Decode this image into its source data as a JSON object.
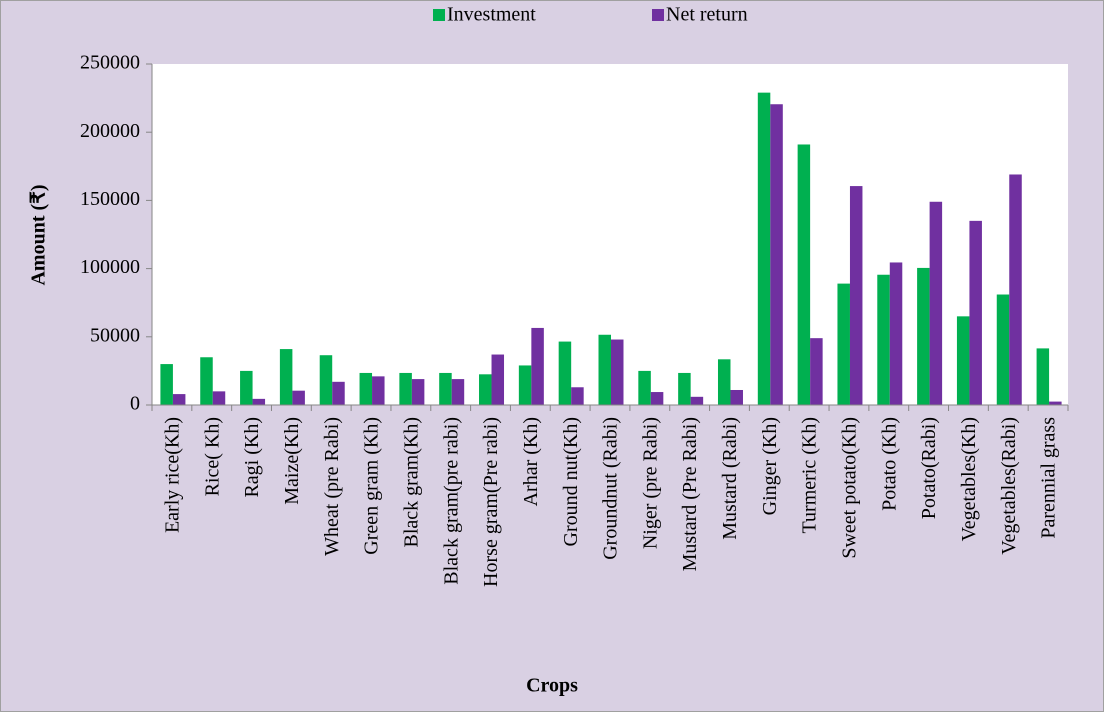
{
  "chart_data": {
    "type": "bar",
    "y_label": "Amount (₹)",
    "x_label": "Crops",
    "categories": [
      "Early rice(Kh)",
      "Rice( Kh)",
      "Ragi (Kh)",
      "Maize(Kh)",
      "Wheat (pre Rabi)",
      "Green gram (Kh)",
      "Black gram(Kh)",
      "Black gram(pre rabi)",
      "Horse gram(Pre rabi)",
      "Arhar (Kh)",
      "Ground nut(Kh)",
      "Groundnut (Rabi)",
      "Niger (pre Rabi)",
      "Mustard (Pre Rabi)",
      "Mustard (Rabi)",
      "Ginger (Kh)",
      "Turmeric (Kh)",
      "Sweet potato(Kh)",
      "Potato (Kh)",
      "Potato(Rabi)",
      "Vegetables(Kh)",
      "Vegetables(Rabi)",
      "Parennial grass"
    ],
    "series": [
      {
        "name": "Investment",
        "color": "#00b050",
        "values": [
          30000,
          35000,
          25000,
          41000,
          36500,
          23500,
          23500,
          23500,
          22500,
          29000,
          46500,
          51500,
          25000,
          23500,
          33500,
          229000,
          191000,
          89000,
          95500,
          100500,
          65000,
          81000,
          41500
        ]
      },
      {
        "name": "Net return",
        "color": "#7030a0",
        "values": [
          8000,
          10000,
          4500,
          10500,
          17000,
          21000,
          19000,
          19000,
          37000,
          56500,
          13000,
          48000,
          9500,
          6000,
          11000,
          220500,
          49000,
          160500,
          104500,
          149000,
          135000,
          169000,
          2500
        ]
      }
    ],
    "ylim": [
      0,
      250000
    ],
    "yticks": [
      0,
      50000,
      100000,
      150000,
      200000,
      250000
    ],
    "grid": false,
    "legend": "top"
  }
}
